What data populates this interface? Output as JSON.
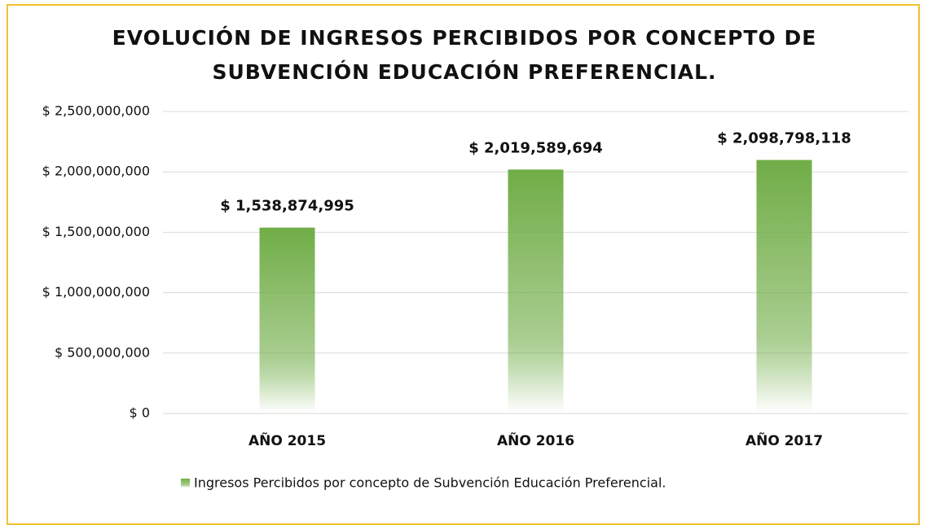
{
  "chart_data": {
    "type": "bar",
    "title": "EVOLUCIÓN DE INGRESOS PERCIBIDOS POR CONCEPTO DE SUBVENCIÓN EDUCACIÓN PREFERENCIAL.",
    "categories": [
      "AÑO 2015",
      "AÑO 2016",
      "AÑO 2017"
    ],
    "series": [
      {
        "name": "Ingresos Percibidos por concepto de Subvención Educación Preferencial.",
        "color": "#70ad47",
        "values": [
          1538874995,
          2019589694,
          2098798118
        ],
        "value_labels": [
          "$ 1,538,874,995",
          "$ 2,019,589,694",
          "$ 2,098,798,118"
        ]
      }
    ],
    "ylim": [
      0,
      2500000000
    ],
    "yticks": [
      {
        "value": 0,
        "label": "$ 0"
      },
      {
        "value": 500000000,
        "label": "$ 500,000,000"
      },
      {
        "value": 1000000000,
        "label": "$ 1,000,000,000"
      },
      {
        "value": 1500000000,
        "label": "$ 1,500,000,000"
      },
      {
        "value": 2000000000,
        "label": "$ 2,000,000,000"
      },
      {
        "value": 2500000000,
        "label": "$ 2,500,000,000"
      }
    ],
    "grid": true,
    "legend": "bottom"
  }
}
